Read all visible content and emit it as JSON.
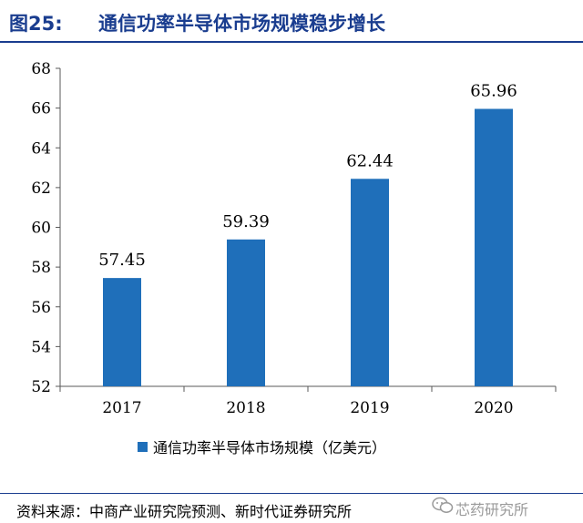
{
  "figure": {
    "number": "图25:",
    "title": "通信功率半导体市场规模稳步增长"
  },
  "source": "资料来源：中商产业研究院预测、新时代证券研究所",
  "watermark": {
    "text": "芯药研究所",
    "icon": "wechat-icon"
  },
  "colors": {
    "bar": "#1f6fba",
    "title": "#1a3d8f"
  },
  "chart_data": {
    "type": "bar",
    "categories": [
      "2017",
      "2018",
      "2019",
      "2020"
    ],
    "series": [
      {
        "name": "通信功率半导体市场规模（亿美元）",
        "values": [
          57.45,
          59.39,
          62.44,
          65.96
        ]
      }
    ],
    "data_labels": [
      "57.45",
      "59.39",
      "62.44",
      "65.96"
    ],
    "ylim": [
      52,
      68
    ],
    "yticks": [
      "52",
      "54",
      "56",
      "58",
      "60",
      "62",
      "64",
      "66",
      "68"
    ],
    "grid": false,
    "legend_position": "bottom"
  }
}
